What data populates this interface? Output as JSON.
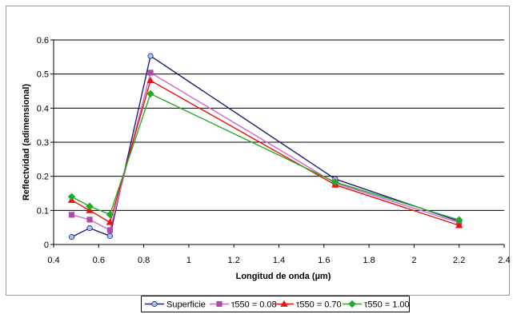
{
  "chart_data": {
    "type": "line",
    "xlabel": "Longitud de onda (µm)",
    "ylabel": "Reflectvidad (adimensional)",
    "xlim": [
      0.4,
      2.4
    ],
    "ylim": [
      0,
      0.6
    ],
    "xticks": [
      "0.4",
      "0.6",
      "0.8",
      "1",
      "1.2",
      "1.4",
      "1.6",
      "1.8",
      "2",
      "2.2",
      "2.4"
    ],
    "yticks": [
      "0",
      "0.1",
      "0.2",
      "0.3",
      "0.4",
      "0.5",
      "0.6"
    ],
    "grid": "horizontal",
    "legend_position": "bottom",
    "x": [
      0.48,
      0.56,
      0.65,
      0.83,
      1.65,
      2.2
    ],
    "series": [
      {
        "name": "Superficie",
        "values": [
          0.022,
          0.048,
          0.025,
          0.553,
          0.192,
          0.068
        ],
        "color": "#1f1f7a",
        "marker": "circle",
        "marker_fill": "#a9c4e8"
      },
      {
        "name": "τ550 = 0.08",
        "values": [
          0.087,
          0.073,
          0.042,
          0.504,
          0.18,
          0.064
        ],
        "color": "#cc66cc",
        "marker": "square",
        "marker_fill": "#b04aa8"
      },
      {
        "name": "τ550 = 0.70",
        "values": [
          0.13,
          0.1,
          0.065,
          0.481,
          0.175,
          0.056
        ],
        "color": "#e8140c",
        "marker": "triangle",
        "marker_fill": "#e8140c"
      },
      {
        "name": "τ550 = 1.00",
        "values": [
          0.14,
          0.112,
          0.088,
          0.442,
          0.183,
          0.072
        ],
        "color": "#22aa22",
        "marker": "diamond",
        "marker_fill": "#22aa22"
      }
    ]
  }
}
